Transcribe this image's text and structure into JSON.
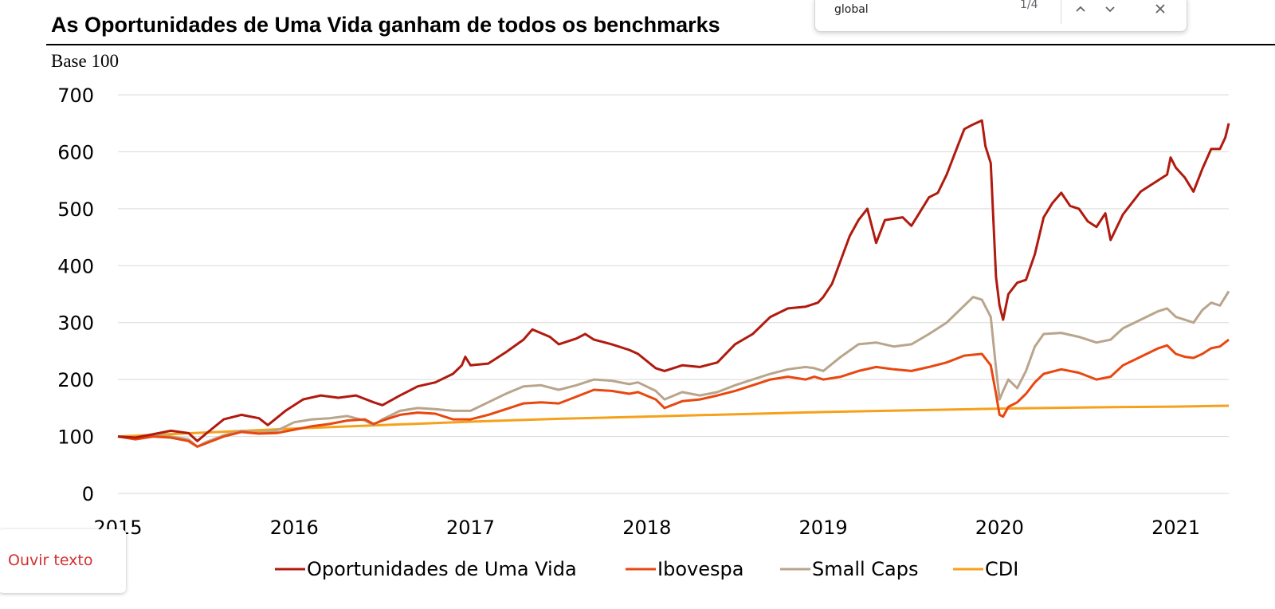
{
  "find_bar": {
    "query": "global",
    "count": "1/4",
    "prev_icon": "chevron-up-icon",
    "next_icon": "chevron-down-icon",
    "close_icon": "close-icon"
  },
  "listen": {
    "label": "Ouvir texto",
    "color": "#d32f2f"
  },
  "chart_data": {
    "type": "line",
    "title": "As Oportunidades de Uma Vida ganham de todos os benchmarks",
    "ylabel": "Base 100",
    "xlabel": "",
    "xlim": [
      2015.0,
      2021.3
    ],
    "ylim": [
      0,
      700
    ],
    "x_ticks": [
      "2015",
      "2016",
      "2017",
      "2018",
      "2019",
      "2020",
      "2021"
    ],
    "y_ticks": [
      "0",
      "100",
      "200",
      "300",
      "400",
      "500",
      "600",
      "700"
    ],
    "grid": "horizontal",
    "legend": "bottom",
    "series": [
      {
        "name": "Oportunidades de Uma Vida",
        "color": "#b01a0f",
        "points": [
          [
            2015.0,
            100
          ],
          [
            2015.1,
            98
          ],
          [
            2015.2,
            104
          ],
          [
            2015.3,
            110
          ],
          [
            2015.4,
            106
          ],
          [
            2015.45,
            92
          ],
          [
            2015.5,
            105
          ],
          [
            2015.6,
            130
          ],
          [
            2015.7,
            138
          ],
          [
            2015.8,
            132
          ],
          [
            2015.85,
            120
          ],
          [
            2015.95,
            145
          ],
          [
            2016.05,
            165
          ],
          [
            2016.15,
            172
          ],
          [
            2016.25,
            168
          ],
          [
            2016.35,
            172
          ],
          [
            2016.45,
            160
          ],
          [
            2016.5,
            155
          ],
          [
            2016.6,
            172
          ],
          [
            2016.7,
            188
          ],
          [
            2016.8,
            195
          ],
          [
            2016.9,
            210
          ],
          [
            2016.95,
            225
          ],
          [
            2016.97,
            240
          ],
          [
            2017.0,
            225
          ],
          [
            2017.1,
            228
          ],
          [
            2017.2,
            248
          ],
          [
            2017.3,
            270
          ],
          [
            2017.35,
            288
          ],
          [
            2017.45,
            275
          ],
          [
            2017.5,
            262
          ],
          [
            2017.6,
            272
          ],
          [
            2017.65,
            280
          ],
          [
            2017.7,
            270
          ],
          [
            2017.8,
            262
          ],
          [
            2017.9,
            252
          ],
          [
            2017.95,
            245
          ],
          [
            2018.05,
            220
          ],
          [
            2018.1,
            215
          ],
          [
            2018.2,
            225
          ],
          [
            2018.3,
            222
          ],
          [
            2018.4,
            230
          ],
          [
            2018.5,
            262
          ],
          [
            2018.6,
            280
          ],
          [
            2018.7,
            310
          ],
          [
            2018.8,
            325
          ],
          [
            2018.9,
            328
          ],
          [
            2018.97,
            335
          ],
          [
            2019.0,
            345
          ],
          [
            2019.05,
            368
          ],
          [
            2019.1,
            410
          ],
          [
            2019.15,
            452
          ],
          [
            2019.2,
            480
          ],
          [
            2019.25,
            500
          ],
          [
            2019.3,
            440
          ],
          [
            2019.35,
            480
          ],
          [
            2019.45,
            485
          ],
          [
            2019.5,
            470
          ],
          [
            2019.55,
            495
          ],
          [
            2019.6,
            520
          ],
          [
            2019.65,
            528
          ],
          [
            2019.7,
            560
          ],
          [
            2019.75,
            600
          ],
          [
            2019.8,
            640
          ],
          [
            2019.85,
            648
          ],
          [
            2019.9,
            655
          ],
          [
            2019.92,
            610
          ],
          [
            2019.95,
            580
          ],
          [
            2019.98,
            380
          ],
          [
            2020.0,
            330
          ],
          [
            2020.02,
            305
          ],
          [
            2020.05,
            350
          ],
          [
            2020.1,
            370
          ],
          [
            2020.15,
            375
          ],
          [
            2020.2,
            420
          ],
          [
            2020.25,
            485
          ],
          [
            2020.3,
            510
          ],
          [
            2020.35,
            528
          ],
          [
            2020.4,
            505
          ],
          [
            2020.45,
            500
          ],
          [
            2020.5,
            478
          ],
          [
            2020.55,
            468
          ],
          [
            2020.6,
            492
          ],
          [
            2020.63,
            445
          ],
          [
            2020.7,
            490
          ],
          [
            2020.75,
            510
          ],
          [
            2020.8,
            530
          ],
          [
            2020.85,
            540
          ],
          [
            2020.9,
            550
          ],
          [
            2020.95,
            560
          ],
          [
            2020.97,
            590
          ],
          [
            2021.0,
            572
          ],
          [
            2021.05,
            555
          ],
          [
            2021.1,
            530
          ],
          [
            2021.15,
            570
          ],
          [
            2021.2,
            605
          ],
          [
            2021.25,
            605
          ],
          [
            2021.28,
            625
          ],
          [
            2021.3,
            650
          ]
        ]
      },
      {
        "name": "Ibovespa",
        "color": "#e8470f",
        "points": [
          [
            2015.0,
            100
          ],
          [
            2015.1,
            95
          ],
          [
            2015.2,
            100
          ],
          [
            2015.3,
            98
          ],
          [
            2015.4,
            92
          ],
          [
            2015.45,
            82
          ],
          [
            2015.5,
            88
          ],
          [
            2015.6,
            100
          ],
          [
            2015.7,
            108
          ],
          [
            2015.8,
            105
          ],
          [
            2015.9,
            106
          ],
          [
            2016.0,
            112
          ],
          [
            2016.1,
            118
          ],
          [
            2016.2,
            122
          ],
          [
            2016.3,
            128
          ],
          [
            2016.4,
            130
          ],
          [
            2016.45,
            122
          ],
          [
            2016.5,
            128
          ],
          [
            2016.6,
            138
          ],
          [
            2016.7,
            142
          ],
          [
            2016.8,
            140
          ],
          [
            2016.9,
            130
          ],
          [
            2017.0,
            130
          ],
          [
            2017.1,
            138
          ],
          [
            2017.2,
            148
          ],
          [
            2017.3,
            158
          ],
          [
            2017.4,
            160
          ],
          [
            2017.5,
            158
          ],
          [
            2017.6,
            170
          ],
          [
            2017.7,
            182
          ],
          [
            2017.8,
            180
          ],
          [
            2017.9,
            175
          ],
          [
            2017.95,
            178
          ],
          [
            2018.05,
            165
          ],
          [
            2018.1,
            150
          ],
          [
            2018.2,
            162
          ],
          [
            2018.3,
            165
          ],
          [
            2018.4,
            172
          ],
          [
            2018.5,
            180
          ],
          [
            2018.6,
            190
          ],
          [
            2018.7,
            200
          ],
          [
            2018.8,
            205
          ],
          [
            2018.9,
            200
          ],
          [
            2018.95,
            205
          ],
          [
            2019.0,
            200
          ],
          [
            2019.1,
            205
          ],
          [
            2019.2,
            215
          ],
          [
            2019.3,
            222
          ],
          [
            2019.4,
            218
          ],
          [
            2019.5,
            215
          ],
          [
            2019.6,
            222
          ],
          [
            2019.7,
            230
          ],
          [
            2019.8,
            242
          ],
          [
            2019.9,
            245
          ],
          [
            2019.95,
            225
          ],
          [
            2019.98,
            175
          ],
          [
            2020.0,
            138
          ],
          [
            2020.02,
            135
          ],
          [
            2020.05,
            152
          ],
          [
            2020.1,
            160
          ],
          [
            2020.15,
            175
          ],
          [
            2020.2,
            195
          ],
          [
            2020.25,
            210
          ],
          [
            2020.35,
            218
          ],
          [
            2020.45,
            212
          ],
          [
            2020.55,
            200
          ],
          [
            2020.63,
            205
          ],
          [
            2020.7,
            225
          ],
          [
            2020.8,
            240
          ],
          [
            2020.9,
            255
          ],
          [
            2020.95,
            260
          ],
          [
            2021.0,
            245
          ],
          [
            2021.05,
            240
          ],
          [
            2021.1,
            238
          ],
          [
            2021.15,
            245
          ],
          [
            2021.2,
            255
          ],
          [
            2021.25,
            258
          ],
          [
            2021.3,
            270
          ]
        ]
      },
      {
        "name": "Small Caps",
        "color": "#b9a58c",
        "points": [
          [
            2015.0,
            100
          ],
          [
            2015.1,
            97
          ],
          [
            2015.2,
            102
          ],
          [
            2015.3,
            100
          ],
          [
            2015.4,
            95
          ],
          [
            2015.45,
            82
          ],
          [
            2015.5,
            90
          ],
          [
            2015.6,
            102
          ],
          [
            2015.7,
            110
          ],
          [
            2015.8,
            107
          ],
          [
            2015.9,
            110
          ],
          [
            2016.0,
            125
          ],
          [
            2016.1,
            130
          ],
          [
            2016.2,
            132
          ],
          [
            2016.3,
            136
          ],
          [
            2016.4,
            128
          ],
          [
            2016.45,
            120
          ],
          [
            2016.5,
            130
          ],
          [
            2016.6,
            145
          ],
          [
            2016.7,
            150
          ],
          [
            2016.8,
            148
          ],
          [
            2016.9,
            145
          ],
          [
            2017.0,
            145
          ],
          [
            2017.1,
            160
          ],
          [
            2017.2,
            175
          ],
          [
            2017.3,
            188
          ],
          [
            2017.4,
            190
          ],
          [
            2017.5,
            182
          ],
          [
            2017.6,
            190
          ],
          [
            2017.7,
            200
          ],
          [
            2017.8,
            198
          ],
          [
            2017.9,
            192
          ],
          [
            2017.95,
            195
          ],
          [
            2018.05,
            180
          ],
          [
            2018.1,
            165
          ],
          [
            2018.2,
            178
          ],
          [
            2018.3,
            172
          ],
          [
            2018.4,
            178
          ],
          [
            2018.5,
            190
          ],
          [
            2018.6,
            200
          ],
          [
            2018.7,
            210
          ],
          [
            2018.8,
            218
          ],
          [
            2018.9,
            222
          ],
          [
            2018.95,
            220
          ],
          [
            2019.0,
            215
          ],
          [
            2019.1,
            240
          ],
          [
            2019.2,
            262
          ],
          [
            2019.3,
            265
          ],
          [
            2019.4,
            258
          ],
          [
            2019.5,
            262
          ],
          [
            2019.6,
            280
          ],
          [
            2019.7,
            300
          ],
          [
            2019.8,
            330
          ],
          [
            2019.85,
            345
          ],
          [
            2019.9,
            340
          ],
          [
            2019.95,
            310
          ],
          [
            2019.98,
            220
          ],
          [
            2020.0,
            165
          ],
          [
            2020.02,
            180
          ],
          [
            2020.05,
            200
          ],
          [
            2020.1,
            185
          ],
          [
            2020.15,
            215
          ],
          [
            2020.2,
            258
          ],
          [
            2020.25,
            280
          ],
          [
            2020.35,
            282
          ],
          [
            2020.45,
            275
          ],
          [
            2020.55,
            265
          ],
          [
            2020.63,
            270
          ],
          [
            2020.7,
            290
          ],
          [
            2020.8,
            305
          ],
          [
            2020.9,
            320
          ],
          [
            2020.95,
            325
          ],
          [
            2021.0,
            310
          ],
          [
            2021.05,
            305
          ],
          [
            2021.1,
            300
          ],
          [
            2021.15,
            322
          ],
          [
            2021.2,
            335
          ],
          [
            2021.25,
            330
          ],
          [
            2021.3,
            355
          ]
        ]
      },
      {
        "name": "CDI",
        "color": "#f5a11b",
        "points": [
          [
            2015.0,
            100
          ],
          [
            2015.5,
            107
          ],
          [
            2016.0,
            114
          ],
          [
            2016.5,
            120
          ],
          [
            2017.0,
            126
          ],
          [
            2017.5,
            131
          ],
          [
            2018.0,
            135
          ],
          [
            2018.5,
            139
          ],
          [
            2019.0,
            143
          ],
          [
            2019.5,
            146
          ],
          [
            2020.0,
            149
          ],
          [
            2020.5,
            151
          ],
          [
            2021.0,
            152.5
          ],
          [
            2021.3,
            154
          ]
        ]
      }
    ]
  }
}
